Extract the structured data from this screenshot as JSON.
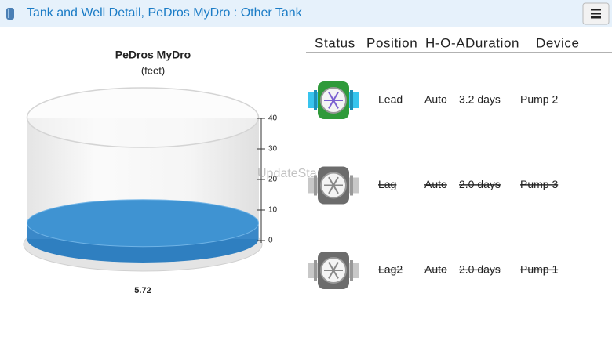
{
  "header": {
    "title": "Tank and Well Detail, PeDros MyDro : Other Tank"
  },
  "tank": {
    "title": "PeDros MyDro",
    "subtitle": "(feet)",
    "value": 5.72,
    "ylim": [
      0,
      40
    ],
    "yticks": [
      0,
      10,
      20,
      30,
      40
    ],
    "color": "#3f93d2",
    "watermark": "UpdateSta"
  },
  "table": {
    "columns": [
      "Status",
      "Position",
      "H-O-A",
      "Duration",
      "Device"
    ],
    "rows": [
      {
        "position": "Lead",
        "hoa": "Auto",
        "duration": "3.2 days",
        "device": "Pump 2",
        "active": true
      },
      {
        "position": "Lag",
        "hoa": "Auto",
        "duration": "2.0 days",
        "device": "Pump 3",
        "active": false
      },
      {
        "position": "Lag2",
        "hoa": "Auto",
        "duration": "2.0 days",
        "device": "Pump 1",
        "active": false
      }
    ]
  }
}
